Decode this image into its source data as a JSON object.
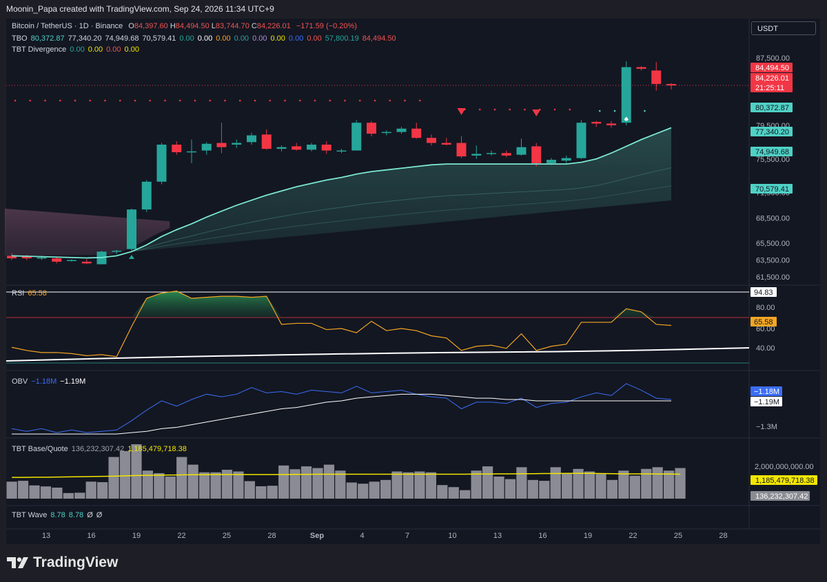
{
  "header": {
    "text": "Moonin_Papa created with TradingView.com, Sep 24, 2026 11:34 UTC+9"
  },
  "legend": {
    "symbol": "Bitcoin / TetherUS · 1D · Binance",
    "ohlc": {
      "o_label": "O",
      "o": "84,397.60",
      "h_label": "H",
      "h": "84,494.50",
      "l_label": "L",
      "l": "83,744.70",
      "c_label": "C",
      "c": "84,226.01",
      "chg": "−171.59 (−0.20%)"
    },
    "tbo": {
      "name": "TBO",
      "values": [
        "80,372.87",
        "77,340.20",
        "74,949.68",
        "70,579.41",
        "0.00",
        "0.00",
        "0.00",
        "0.00",
        "0.00",
        "0.00",
        "0.00",
        "0.00",
        "57,800.19",
        "84,494.50"
      ],
      "colors": [
        "#4fd1c5",
        "#d1d4dc",
        "#d1d4dc",
        "#d1d4dc",
        "#26a69a",
        "#ffffff",
        "#f5a623",
        "#26a69a",
        "#b28bd8",
        "#f2e600",
        "#3b6ef5",
        "#ef5350",
        "#26a69a",
        "#ef5350"
      ]
    },
    "tbt_div": {
      "name": "TBT Divergence",
      "values": [
        "0.00",
        "0.00",
        "0.00",
        "0.00"
      ],
      "colors": [
        "#26a69a",
        "#f2e600",
        "#ef5350",
        "#f2e600"
      ]
    },
    "rsi": {
      "name": "RSI",
      "value": "65.58"
    },
    "obv": {
      "name": "OBV",
      "v1": "−1.18M",
      "v2": "−1.19M"
    },
    "tbt_bq": {
      "name": "TBT Base/Quote",
      "v1": "136,232,307.42",
      "v2": "1,185,479,718.38"
    },
    "tbt_wave": {
      "name": "TBT Wave",
      "v1": "8.78",
      "v2": "8.78",
      "v3": "Ø",
      "v4": "Ø"
    }
  },
  "currency_button": "USDT",
  "brand": "TradingView",
  "colors": {
    "up": "#26a69a",
    "down": "#f23645",
    "ema": "#7ce8d3",
    "rsi": "#f5a623",
    "obv": "#3b6ef5",
    "volume": "#a0a0a8",
    "vol_ma": "#f2e600"
  },
  "chart_data": [
    {
      "type": "candlestick",
      "title": "Bitcoin / TetherUS · 1D · Binance",
      "x_ticks": [
        "13",
        "16",
        "19",
        "22",
        "25",
        "28",
        "Sep",
        "4",
        "7",
        "10",
        "13",
        "16",
        "19",
        "22",
        "25",
        "28"
      ],
      "y_ticks": [
        "87,500.00",
        "79,500.00",
        "75,500.00",
        "71,500.00",
        "68,500.00",
        "65,500.00",
        "63,500.00",
        "61,500.00"
      ],
      "price_labels": [
        {
          "text": "84,494.50",
          "color": "#f23645"
        },
        {
          "text": "84,226.01",
          "color": "#f23645"
        },
        {
          "text": "21:25:11",
          "color": "#f23645"
        },
        {
          "text": "80,372.87",
          "color": "#4fd1c5"
        },
        {
          "text": "77,340.20",
          "color": "#4fd1c5"
        },
        {
          "text": "74,949.68",
          "color": "#4fd1c5"
        },
        {
          "text": "70,579.41",
          "color": "#4fd1c5"
        }
      ],
      "candles": [
        {
          "o": 64000,
          "h": 64300,
          "l": 63500,
          "c": 63700
        },
        {
          "o": 63900,
          "h": 64100,
          "l": 63500,
          "c": 63700
        },
        {
          "o": 63800,
          "h": 64000,
          "l": 63500,
          "c": 63800
        },
        {
          "o": 63700,
          "h": 63900,
          "l": 63100,
          "c": 63300
        },
        {
          "o": 63400,
          "h": 63600,
          "l": 63300,
          "c": 63500
        },
        {
          "o": 63300,
          "h": 63600,
          "l": 63000,
          "c": 63100
        },
        {
          "o": 63000,
          "h": 64600,
          "l": 63000,
          "c": 64500
        },
        {
          "o": 64500,
          "h": 64700,
          "l": 64200,
          "c": 64600
        },
        {
          "o": 64800,
          "h": 69600,
          "l": 64600,
          "c": 69500
        },
        {
          "o": 69500,
          "h": 73000,
          "l": 69200,
          "c": 72800
        },
        {
          "o": 72800,
          "h": 77400,
          "l": 72500,
          "c": 77200
        },
        {
          "o": 77200,
          "h": 77600,
          "l": 76000,
          "c": 76300
        },
        {
          "o": 76300,
          "h": 77800,
          "l": 75000,
          "c": 76400
        },
        {
          "o": 76500,
          "h": 77500,
          "l": 76000,
          "c": 77300
        },
        {
          "o": 77400,
          "h": 79800,
          "l": 76200,
          "c": 76900
        },
        {
          "o": 77200,
          "h": 77800,
          "l": 76800,
          "c": 77400
        },
        {
          "o": 77500,
          "h": 78600,
          "l": 77200,
          "c": 78300
        },
        {
          "o": 78400,
          "h": 79000,
          "l": 76600,
          "c": 76700
        },
        {
          "o": 76700,
          "h": 77100,
          "l": 76400,
          "c": 76900
        },
        {
          "o": 77000,
          "h": 77400,
          "l": 76500,
          "c": 76600
        },
        {
          "o": 76600,
          "h": 77400,
          "l": 76400,
          "c": 77200
        },
        {
          "o": 77200,
          "h": 77600,
          "l": 76100,
          "c": 76500
        },
        {
          "o": 76400,
          "h": 76700,
          "l": 76200,
          "c": 76500
        },
        {
          "o": 76500,
          "h": 80100,
          "l": 76500,
          "c": 79800
        },
        {
          "o": 79800,
          "h": 80000,
          "l": 78200,
          "c": 78500
        },
        {
          "o": 78600,
          "h": 78900,
          "l": 78300,
          "c": 78700
        },
        {
          "o": 78700,
          "h": 79300,
          "l": 78500,
          "c": 79100
        },
        {
          "o": 79100,
          "h": 79800,
          "l": 77900,
          "c": 78000
        },
        {
          "o": 78000,
          "h": 78400,
          "l": 77100,
          "c": 77400
        },
        {
          "o": 77400,
          "h": 78000,
          "l": 77100,
          "c": 77200
        },
        {
          "o": 77400,
          "h": 78200,
          "l": 75600,
          "c": 75800
        },
        {
          "o": 75900,
          "h": 77100,
          "l": 75500,
          "c": 76100
        },
        {
          "o": 76100,
          "h": 76500,
          "l": 75900,
          "c": 76200
        },
        {
          "o": 76200,
          "h": 76500,
          "l": 75700,
          "c": 75900
        },
        {
          "o": 76000,
          "h": 77900,
          "l": 75900,
          "c": 76900
        },
        {
          "o": 77000,
          "h": 77400,
          "l": 74600,
          "c": 75000
        },
        {
          "o": 75000,
          "h": 75600,
          "l": 74800,
          "c": 75400
        },
        {
          "o": 75300,
          "h": 75900,
          "l": 75000,
          "c": 75600
        },
        {
          "o": 75600,
          "h": 80100,
          "l": 75500,
          "c": 79800
        },
        {
          "o": 79900,
          "h": 80000,
          "l": 79300,
          "c": 79700
        },
        {
          "o": 79700,
          "h": 80000,
          "l": 79200,
          "c": 79500
        },
        {
          "o": 79800,
          "h": 87100,
          "l": 79500,
          "c": 86400
        },
        {
          "o": 86400,
          "h": 86500,
          "l": 86000,
          "c": 86200
        },
        {
          "o": 86000,
          "h": 87000,
          "l": 83600,
          "c": 84400
        },
        {
          "o": 84397.6,
          "h": 84494.5,
          "l": 83744.7,
          "c": 84226.01
        }
      ],
      "ema": [
        64000,
        63950,
        63900,
        63850,
        63800,
        63750,
        63800,
        64000,
        64500,
        65300,
        66300,
        67100,
        67800,
        68600,
        69300,
        70000,
        70600,
        71200,
        71700,
        72200,
        72600,
        73000,
        73300,
        73700,
        74000,
        74200,
        74400,
        74600,
        74800,
        74900,
        74900,
        74900,
        74900,
        74900,
        74900,
        74900,
        74900,
        74900,
        75100,
        75500,
        76200,
        77000,
        77800,
        78500,
        79200
      ]
    },
    {
      "type": "line",
      "name": "RSI",
      "value_label": "65.58",
      "y_ticks": [
        "80.00",
        "60.00",
        "40.00"
      ],
      "axis_labels": [
        "94.83",
        "65.58"
      ],
      "y_range": [
        24,
        98
      ],
      "values": [
        41,
        38,
        36,
        36,
        35,
        33,
        34,
        32,
        61,
        88,
        93,
        95,
        88,
        89,
        90,
        90,
        89,
        90,
        63,
        64,
        64,
        58,
        59,
        55,
        66,
        57,
        59,
        57,
        52,
        50,
        38,
        42,
        43,
        40,
        54,
        38,
        42,
        44,
        65,
        65,
        65,
        78,
        75,
        63,
        62
      ]
    },
    {
      "type": "line",
      "name": "OBV",
      "values_label": [
        "−1.18M",
        "−1.19M"
      ],
      "y_ticks": [
        "−1.3M"
      ],
      "series": [
        {
          "name": "−1.18M",
          "values": [
            -1.4,
            -1.42,
            -1.4,
            -1.43,
            -1.41,
            -1.43,
            -1.42,
            -1.41,
            -1.34,
            -1.26,
            -1.19,
            -1.23,
            -1.18,
            -1.14,
            -1.16,
            -1.14,
            -1.09,
            -1.13,
            -1.12,
            -1.14,
            -1.11,
            -1.12,
            -1.13,
            -1.08,
            -1.13,
            -1.12,
            -1.11,
            -1.14,
            -1.16,
            -1.17,
            -1.25,
            -1.2,
            -1.2,
            -1.21,
            -1.17,
            -1.24,
            -1.21,
            -1.2,
            -1.16,
            -1.13,
            -1.15,
            -1.06,
            -1.11,
            -1.17,
            -1.18
          ]
        },
        {
          "name": "−1.19M",
          "values": [
            -1.44,
            -1.44,
            -1.44,
            -1.44,
            -1.44,
            -1.44,
            -1.44,
            -1.44,
            -1.43,
            -1.42,
            -1.4,
            -1.39,
            -1.37,
            -1.35,
            -1.33,
            -1.31,
            -1.29,
            -1.27,
            -1.25,
            -1.24,
            -1.22,
            -1.2,
            -1.19,
            -1.17,
            -1.16,
            -1.15,
            -1.14,
            -1.14,
            -1.14,
            -1.15,
            -1.16,
            -1.17,
            -1.17,
            -1.18,
            -1.18,
            -1.19,
            -1.19,
            -1.19,
            -1.19,
            -1.19,
            -1.19,
            -1.19,
            -1.19,
            -1.19,
            -1.19
          ]
        }
      ]
    },
    {
      "type": "bar",
      "name": "TBT Base/Quote",
      "y_ticks": [
        "2,000,000,000.00"
      ],
      "axis_labels": [
        "1,185,479,718.38",
        "136,232,307.42"
      ],
      "y_range": [
        0,
        2800000000
      ],
      "values": [
        1000,
        1050,
        780,
        720,
        650,
        330,
        350,
        1000,
        970,
        2450,
        2800,
        3200,
        1650,
        1500,
        1300,
        2450,
        2000,
        1550,
        1550,
        1700,
        1600,
        1030,
        730,
        760,
        1950,
        1730,
        1900,
        1800,
        2000,
        1650,
        950,
        880,
        1000,
        1100,
        1600,
        1550,
        1600,
        1550,
        800,
        680,
        500,
        1650,
        1900,
        1300,
        1150,
        1850,
        1100,
        1050,
        1850,
        1500,
        1750,
        1600,
        1450,
        1100,
        1650,
        1350,
        1750,
        1850,
        1650,
        1800
      ],
      "ma": [
        1250,
        1250,
        1260,
        1260,
        1270,
        1280,
        1290,
        1300,
        1310,
        1320,
        1340,
        1360,
        1370,
        1380,
        1390,
        1400,
        1410,
        1410,
        1420,
        1420,
        1420,
        1420,
        1420,
        1420,
        1420,
        1430,
        1430,
        1440,
        1440,
        1440,
        1440,
        1440,
        1440,
        1440,
        1440,
        1440,
        1440,
        1440,
        1440,
        1440,
        1440,
        1450,
        1450,
        1460,
        1460,
        1470,
        1470,
        1480,
        1480,
        1490,
        1490,
        1490,
        1480,
        1470,
        1460,
        1460,
        1460,
        1450,
        1450,
        1440
      ]
    }
  ]
}
